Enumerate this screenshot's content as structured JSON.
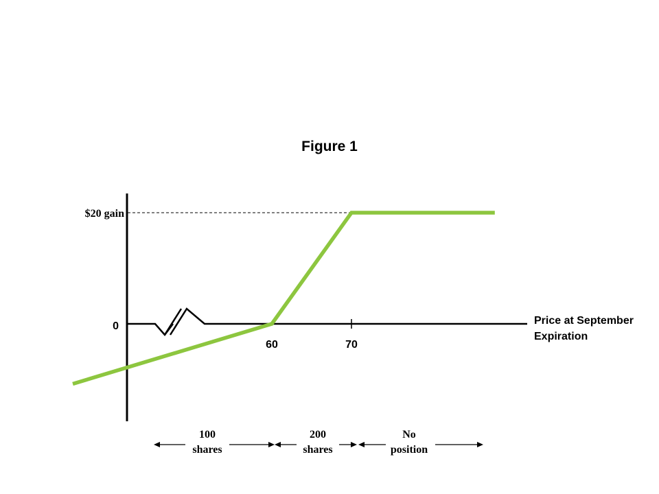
{
  "chart_data": {
    "type": "line",
    "title": "Figure 1",
    "xlabel_line1": "Price at September",
    "xlabel_line2": "Expiration",
    "x_ticks": [
      "60",
      "70"
    ],
    "y_ticks": {
      "zero": "0",
      "top": "$20 gain"
    },
    "series": [
      {
        "color": "#8dc63f",
        "points": [
          {
            "x": 35,
            "y": -10.8
          },
          {
            "x": 60,
            "y": 0
          },
          {
            "x": 70,
            "y": 20
          },
          {
            "x": 88,
            "y": 20
          }
        ]
      }
    ],
    "axis_break": true,
    "reference_line": {
      "y": 20,
      "style": "dashed"
    },
    "regions": [
      {
        "line1": "100",
        "line2": "shares"
      },
      {
        "line1": "200",
        "line2": "shares"
      },
      {
        "line1": "No",
        "line2": "position"
      }
    ]
  }
}
